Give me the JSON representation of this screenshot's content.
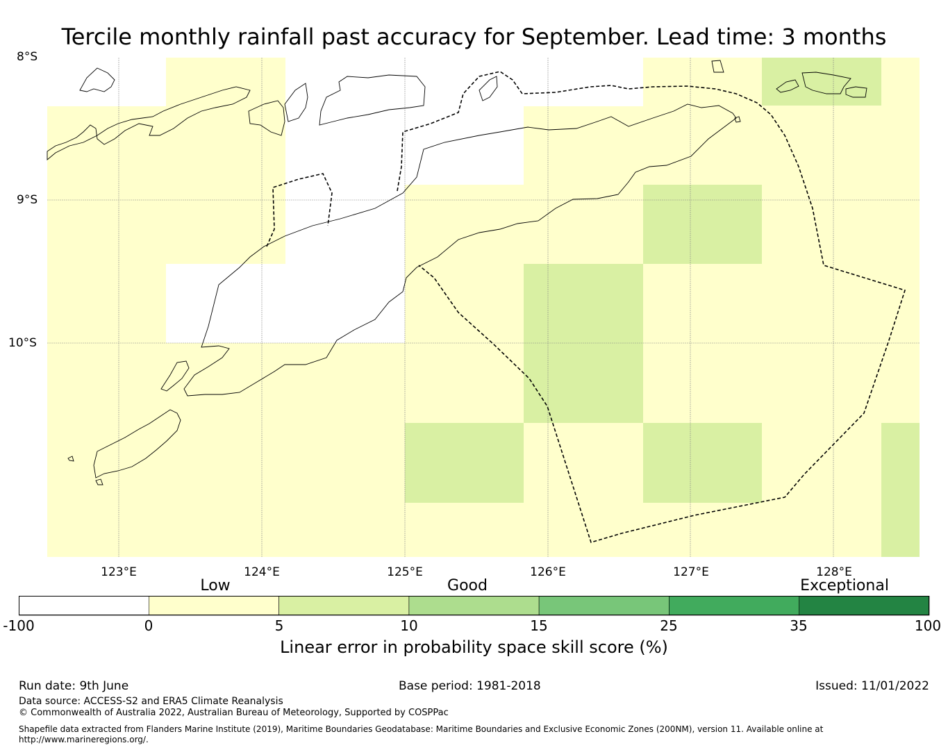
{
  "title": "Tercile monthly rainfall past accuracy for September. Lead time: 3 months",
  "map": {
    "lat_labels": [
      "8°S",
      "9°S",
      "10°S"
    ],
    "lon_labels": [
      "123°E",
      "124°E",
      "125°E",
      "126°E",
      "127°E",
      "128°E"
    ],
    "colors": {
      "low": "#ffffcc",
      "good_light": "#d9f0a3",
      "no_data": "#ffffff"
    }
  },
  "legend": {
    "categories": [
      "Low",
      "Good",
      "Exceptional"
    ],
    "ticks": [
      "-100",
      "0",
      "5",
      "10",
      "15",
      "25",
      "35",
      "100"
    ],
    "bins": [
      {
        "from": "-100",
        "to": "0",
        "color": "#ffffff"
      },
      {
        "from": "0",
        "to": "5",
        "color": "#ffffcc"
      },
      {
        "from": "5",
        "to": "10",
        "color": "#d9f0a3"
      },
      {
        "from": "10",
        "to": "15",
        "color": "#addd8e"
      },
      {
        "from": "15",
        "to": "25",
        "color": "#78c679"
      },
      {
        "from": "25",
        "to": "35",
        "color": "#41ab5d"
      },
      {
        "from": "35",
        "to": "100",
        "color": "#238443"
      }
    ],
    "label": "Linear error in probability space skill score (%)"
  },
  "footer": {
    "run_date": "Run date: 9th June",
    "base_period": "Base period: 1981-2018",
    "issued": "Issued: 11/01/2022",
    "data_source": "Data source: ACCESS-S2 and ERA5 Climate Reanalysis",
    "copyright": "© Commonwealth of Australia 2022, Australian Bureau of Meteorology, Supported by COSPPac",
    "shapefile_line1": "Shapefile data extracted from Flanders Marine Institute (2019), Maritime Boundaries Geodatabase: Maritime Boundaries and Exclusive Economic Zones (200NM), version 11. Available online at",
    "shapefile_line2": "http://www.marineregions.org/."
  }
}
